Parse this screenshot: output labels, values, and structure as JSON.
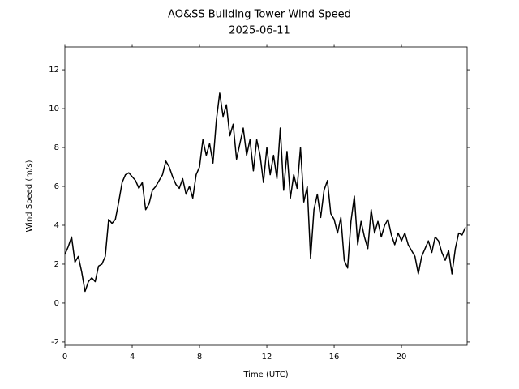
{
  "chart_data": {
    "type": "line",
    "title": "AO&SS Building Tower Wind Speed",
    "subtitle": "2025-06-11",
    "x_label": "Time (UTC)",
    "y_label": "Wind Speed (m/s)",
    "xlim": [
      0,
      23.9
    ],
    "ylim": [
      -2.17,
      13.17
    ],
    "xticks": [
      0,
      4,
      8,
      12,
      16,
      20
    ],
    "yticks": [
      -2,
      0,
      2,
      4,
      6,
      8,
      10,
      12
    ],
    "grid": false,
    "color": "#000000",
    "x": [
      0,
      0.2,
      0.4,
      0.6,
      0.8,
      1,
      1.2,
      1.4,
      1.6,
      1.8,
      2,
      2.2,
      2.4,
      2.6,
      2.8,
      3,
      3.2,
      3.4,
      3.6,
      3.8,
      4,
      4.2,
      4.4,
      4.6,
      4.8,
      5,
      5.2,
      5.4,
      5.6,
      5.8,
      6,
      6.2,
      6.4,
      6.6,
      6.8,
      7,
      7.2,
      7.4,
      7.6,
      7.8,
      8,
      8.2,
      8.4,
      8.6,
      8.8,
      9,
      9.2,
      9.4,
      9.6,
      9.8,
      10,
      10.2,
      10.4,
      10.6,
      10.8,
      11,
      11.2,
      11.4,
      11.6,
      11.8,
      12,
      12.2,
      12.4,
      12.6,
      12.8,
      13,
      13.2,
      13.4,
      13.6,
      13.8,
      14,
      14.2,
      14.4,
      14.6,
      14.8,
      15,
      15.2,
      15.4,
      15.6,
      15.8,
      16,
      16.2,
      16.4,
      16.6,
      16.8,
      17,
      17.2,
      17.4,
      17.6,
      17.8,
      18,
      18.2,
      18.4,
      18.6,
      18.8,
      19,
      19.2,
      19.4,
      19.6,
      19.8,
      20,
      20.2,
      20.4,
      20.6,
      20.8,
      21,
      21.2,
      21.4,
      21.6,
      21.8,
      22,
      22.2,
      22.4,
      22.6,
      22.8,
      23,
      23.2,
      23.4,
      23.6,
      23.8
    ],
    "values": [
      2.5,
      2.9,
      3.4,
      2.1,
      2.4,
      1.6,
      0.6,
      1.1,
      1.3,
      1.1,
      1.9,
      2.0,
      2.4,
      4.3,
      4.1,
      4.3,
      5.2,
      6.2,
      6.6,
      6.7,
      6.5,
      6.3,
      5.9,
      6.2,
      4.8,
      5.1,
      5.8,
      6.0,
      6.3,
      6.6,
      7.3,
      7.0,
      6.5,
      6.1,
      5.9,
      6.4,
      5.6,
      6.0,
      5.4,
      6.6,
      7.0,
      8.4,
      7.6,
      8.2,
      7.2,
      9.4,
      10.8,
      9.6,
      10.2,
      8.6,
      9.2,
      7.4,
      8.2,
      9.0,
      7.6,
      8.4,
      6.8,
      8.4,
      7.6,
      6.2,
      8.0,
      6.6,
      7.6,
      6.4,
      9.0,
      5.8,
      7.8,
      5.4,
      6.6,
      5.9,
      8.0,
      5.2,
      6.0,
      2.3,
      4.8,
      5.6,
      4.4,
      5.8,
      6.3,
      4.6,
      4.3,
      3.6,
      4.4,
      2.2,
      1.8,
      4.2,
      5.5,
      3.0,
      4.2,
      3.4,
      2.8,
      4.8,
      3.6,
      4.2,
      3.4,
      4.0,
      4.3,
      3.5,
      3.0,
      3.6,
      3.2,
      3.6,
      3.0,
      2.7,
      2.4,
      1.5,
      2.4,
      2.8,
      3.2,
      2.6,
      3.4,
      3.2,
      2.6,
      2.2,
      2.7,
      1.5,
      2.8,
      3.6,
      3.5,
      3.9
    ]
  }
}
